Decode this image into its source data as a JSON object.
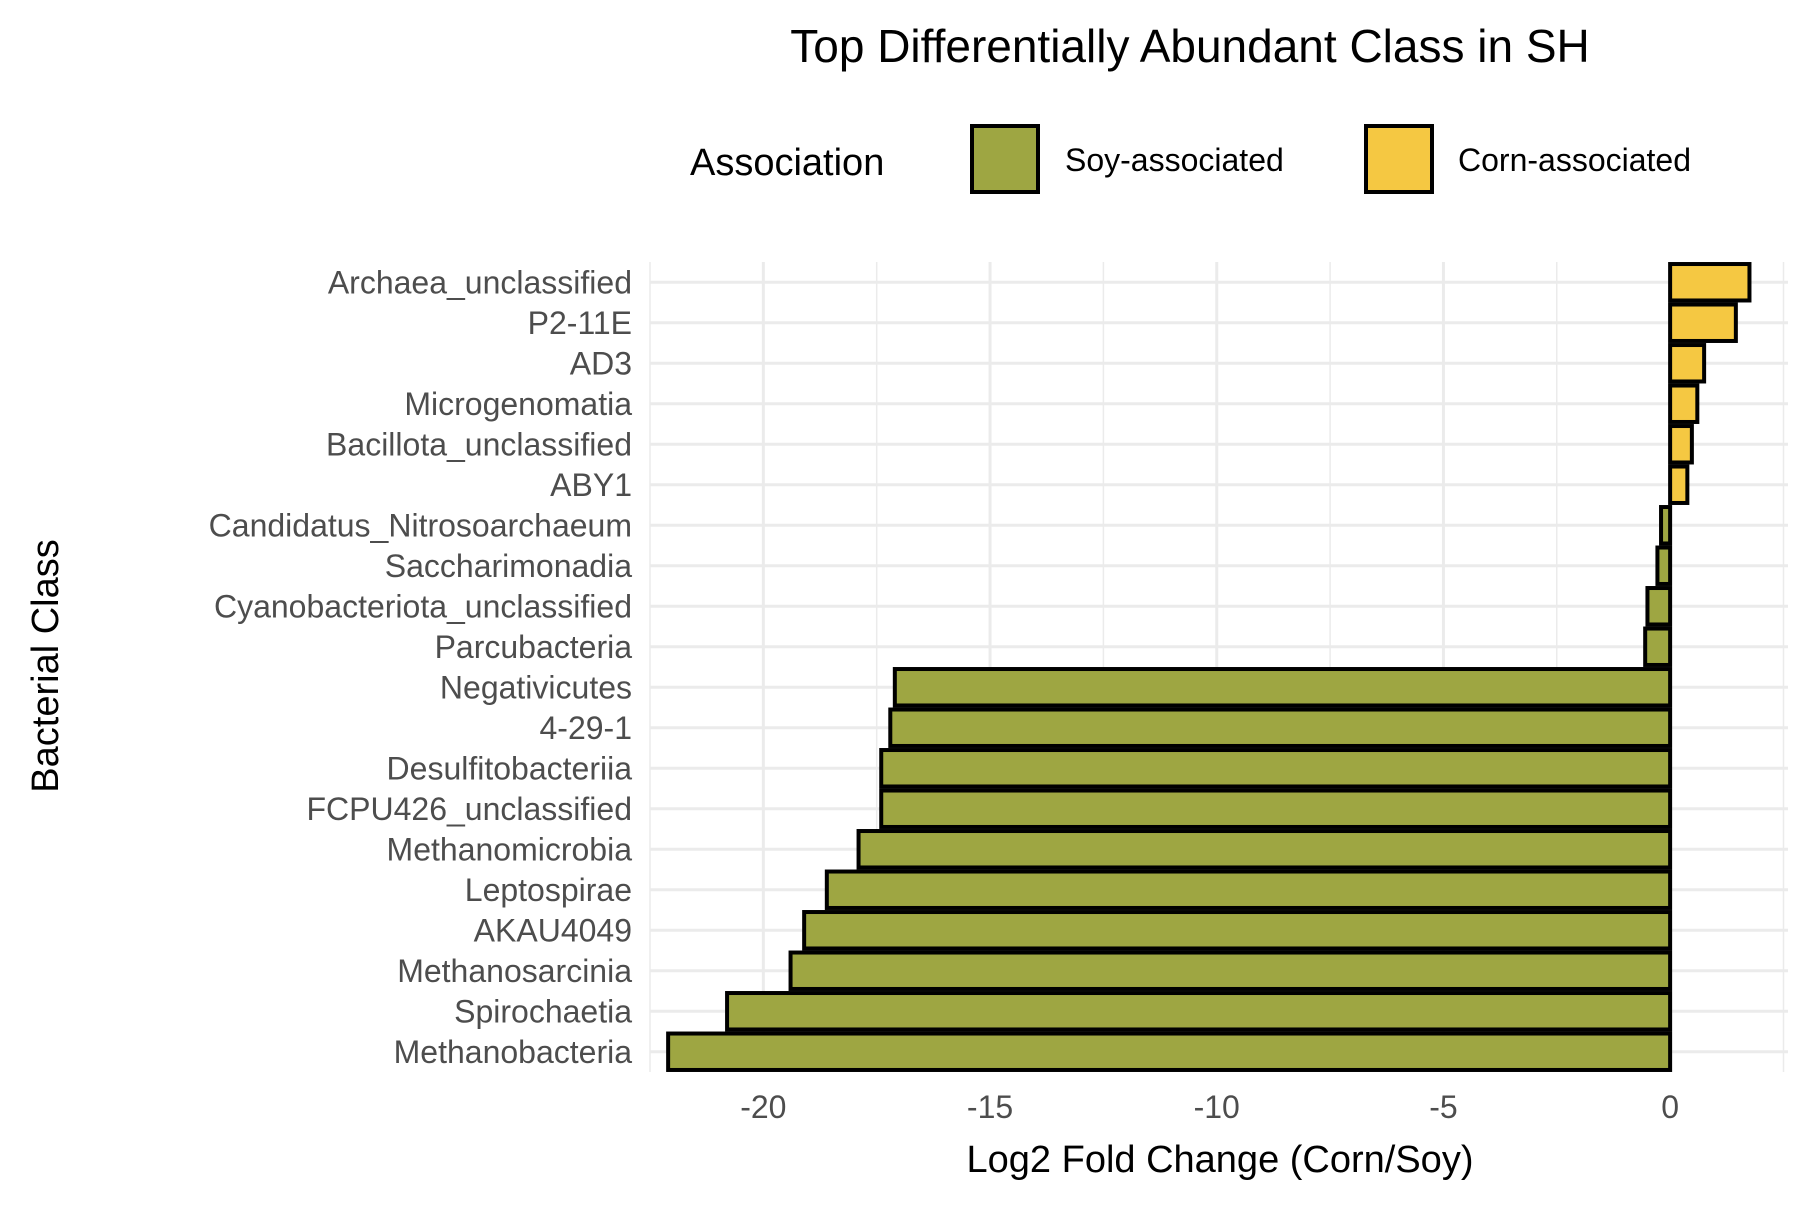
{
  "chart_data": {
    "type": "bar",
    "orientation": "horizontal",
    "title": "Top Differentially Abundant Class in SH",
    "xlabel": "Log2 Fold Change (Corn/Soy)",
    "ylabel": "Bacterial Class",
    "xlim": [
      -22.5,
      2.6
    ],
    "xticks": [
      -20,
      -15,
      -10,
      -5,
      0
    ],
    "xtick_labels": [
      "-20",
      "-15",
      "-10",
      "-5",
      "0"
    ],
    "grid": true,
    "legend": {
      "title": "Association",
      "position": "top",
      "entries": [
        {
          "key": "soy",
          "label": "Soy-associated",
          "color": "#9ea642"
        },
        {
          "key": "corn",
          "label": "Corn-associated",
          "color": "#f5c842"
        }
      ]
    },
    "categories": [
      "Archaea_unclassified",
      "P2-11E",
      "AD3",
      "Microgenomatia",
      "Bacillota_unclassified",
      "ABY1",
      "Candidatus_Nitrosoarchaeum",
      "Saccharimonadia",
      "Cyanobacteriota_unclassified",
      "Parcubacteria",
      "Negativicutes",
      "4-29-1",
      "Desulfitobacteriia",
      "FCPU426_unclassified",
      "Methanomicrobia",
      "Leptospirae",
      "AKAU4049",
      "Methanosarcinia",
      "Spirochaetia",
      "Methanobacteria"
    ],
    "values": [
      1.75,
      1.45,
      0.75,
      0.6,
      0.48,
      0.38,
      -0.2,
      -0.28,
      -0.5,
      -0.55,
      -17.1,
      -17.2,
      -17.4,
      -17.4,
      -17.9,
      -18.6,
      -19.1,
      -19.4,
      -20.8,
      -22.1
    ],
    "association": [
      "corn",
      "corn",
      "corn",
      "corn",
      "corn",
      "corn",
      "soy",
      "soy",
      "soy",
      "soy",
      "soy",
      "soy",
      "soy",
      "soy",
      "soy",
      "soy",
      "soy",
      "soy",
      "soy",
      "soy"
    ]
  }
}
